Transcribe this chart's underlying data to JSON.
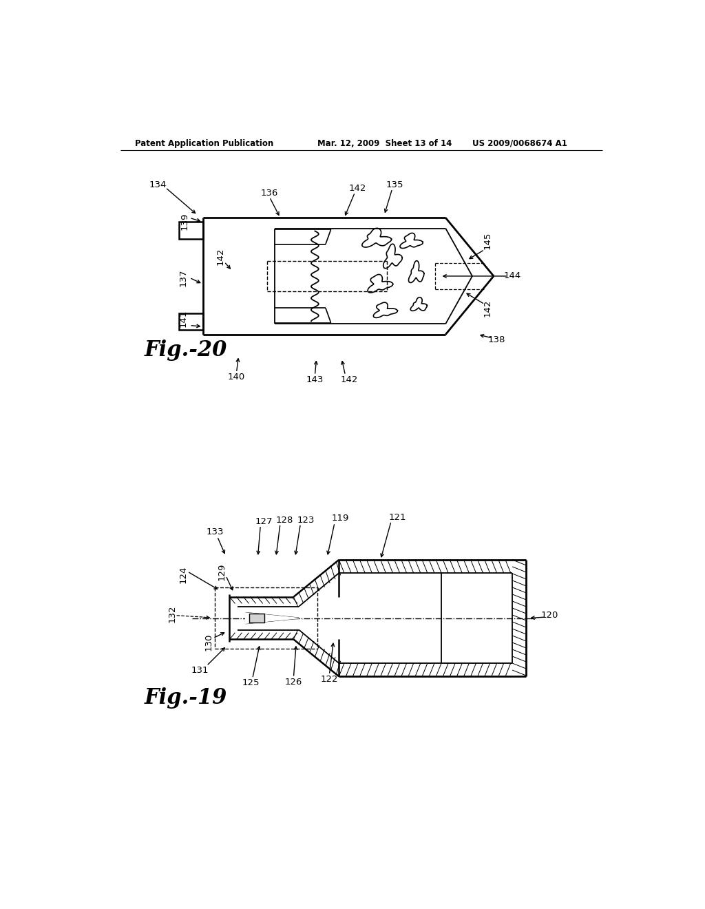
{
  "background_color": "#ffffff",
  "header_left": "Patent Application Publication",
  "header_center": "Mar. 12, 2009  Sheet 13 of 14",
  "header_right": "US 2009/0068674 A1",
  "fig20_label": "Fig.-20",
  "fig19_label": "Fig.-19",
  "line_color": "#000000",
  "text_color": "#000000"
}
